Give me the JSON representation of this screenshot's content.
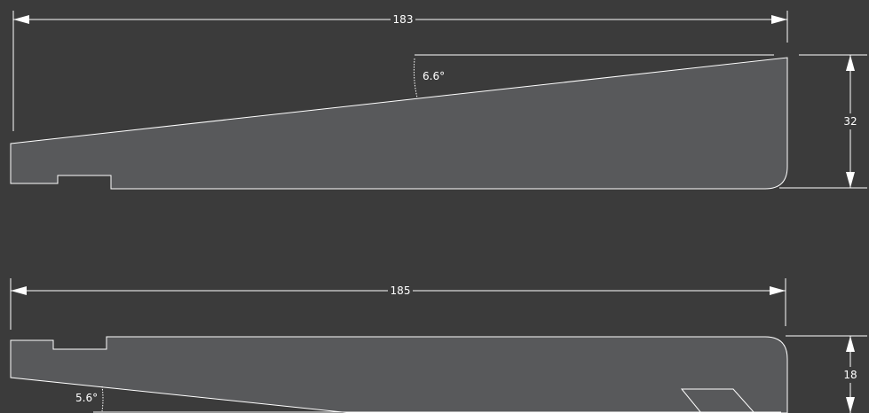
{
  "top_view": {
    "length_label": "183",
    "height_label": "32",
    "angle_label": "6.6°"
  },
  "bottom_view": {
    "length_label": "185",
    "height_label": "18",
    "angle_label": "5.6°"
  },
  "colors": {
    "background": "#3b3b3b",
    "part_fill": "#58595b",
    "line": "#ffffff"
  }
}
